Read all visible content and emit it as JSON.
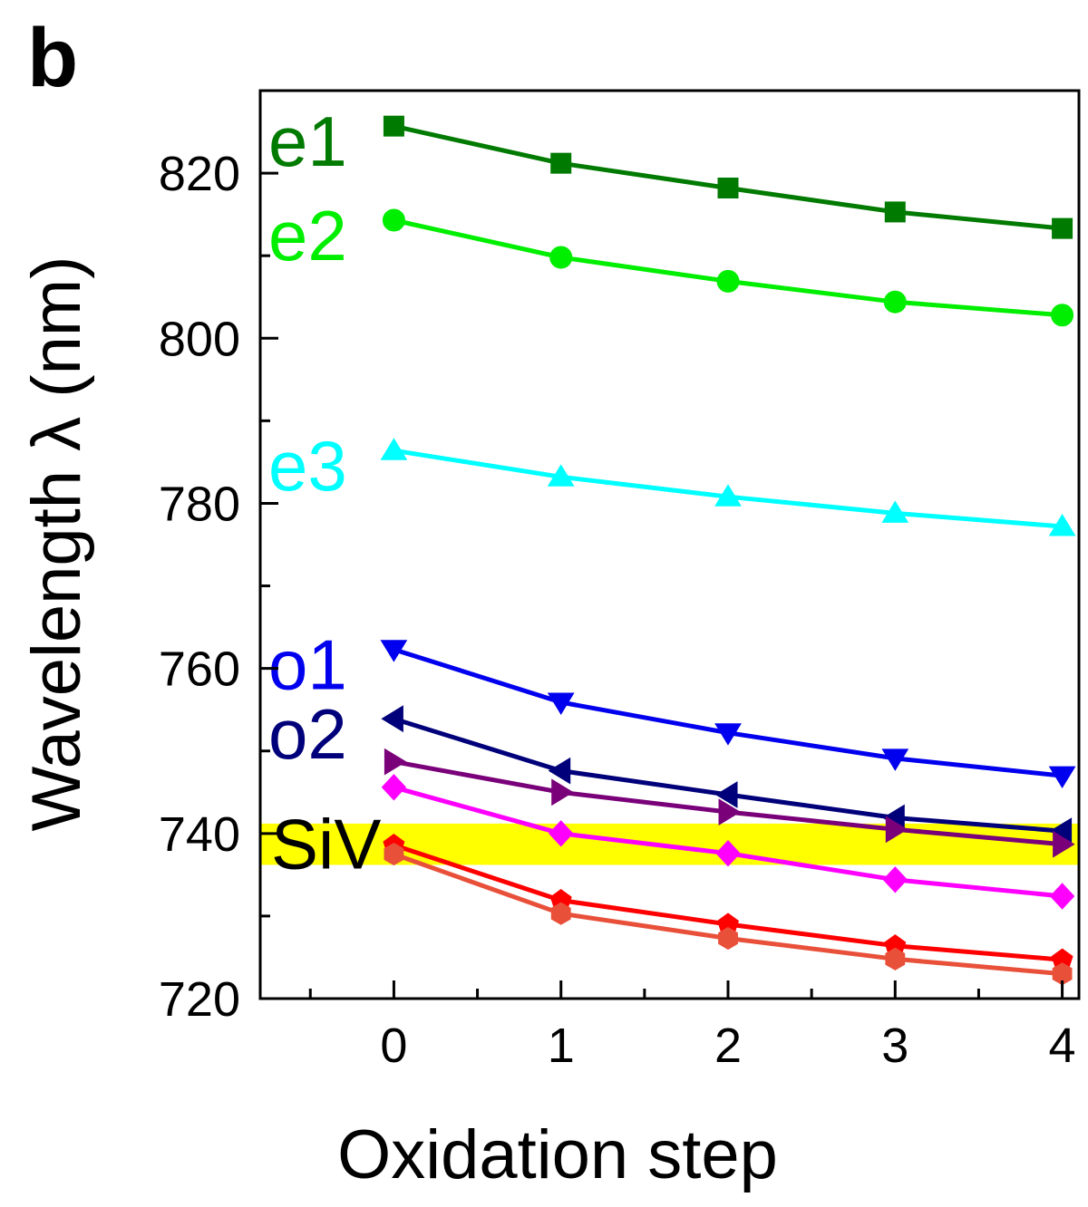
{
  "chart_data": {
    "type": "line",
    "panel_label": "b",
    "xlabel": "Oxidation step",
    "ylabel": "Wavelength λ (nm)",
    "xlim": [
      -0.8,
      4.1
    ],
    "ylim": [
      720,
      830
    ],
    "x": [
      0,
      1,
      2,
      3,
      4
    ],
    "xticks": [
      0,
      1,
      2,
      3,
      4
    ],
    "xtick_labels": [
      "0",
      "1",
      "2",
      "3",
      "4"
    ],
    "yticks": [
      720,
      740,
      760,
      780,
      800,
      820
    ],
    "ytick_labels": [
      "720",
      "740",
      "760",
      "780",
      "800",
      "820"
    ],
    "band": {
      "label": "SiV",
      "y0": 736.2,
      "y1": 741.2,
      "color": "#ffff00"
    },
    "series": [
      {
        "name": "e1",
        "label": "e1",
        "color": "#007a00",
        "marker": "square",
        "values": [
          825.7,
          821.2,
          818.2,
          815.3,
          813.3
        ]
      },
      {
        "name": "e2",
        "label": "e2",
        "color": "#00ee00",
        "marker": "circle",
        "values": [
          814.3,
          809.8,
          806.9,
          804.4,
          802.8
        ]
      },
      {
        "name": "e3",
        "label": "e3",
        "color": "#00ffff",
        "marker": "triangle-up",
        "values": [
          786.4,
          783.2,
          780.8,
          778.8,
          777.2
        ]
      },
      {
        "name": "o1",
        "label": "o1",
        "color": "#0000ee",
        "marker": "triangle-down",
        "values": [
          762.3,
          755.9,
          752.2,
          749.1,
          747.0
        ]
      },
      {
        "name": "o2",
        "label": "o2",
        "color": "#00007a",
        "marker": "triangle-left",
        "values": [
          753.9,
          747.6,
          744.7,
          741.9,
          740.3
        ]
      },
      {
        "name": "series-6",
        "label": "",
        "color": "#7a007a",
        "marker": "triangle-right",
        "values": [
          748.7,
          745.0,
          742.6,
          740.5,
          738.7
        ]
      },
      {
        "name": "series-7",
        "label": "",
        "color": "#ff00ff",
        "marker": "diamond",
        "values": [
          745.6,
          740.0,
          737.6,
          734.4,
          732.4
        ]
      },
      {
        "name": "series-8",
        "label": "",
        "color": "#ff0000",
        "marker": "pentagon",
        "values": [
          738.6,
          731.9,
          729.0,
          726.4,
          724.7
        ]
      },
      {
        "name": "series-9",
        "label": "",
        "color": "#e8503a",
        "marker": "hexagon",
        "values": [
          737.5,
          730.3,
          727.3,
          724.8,
          723.0
        ]
      }
    ]
  }
}
